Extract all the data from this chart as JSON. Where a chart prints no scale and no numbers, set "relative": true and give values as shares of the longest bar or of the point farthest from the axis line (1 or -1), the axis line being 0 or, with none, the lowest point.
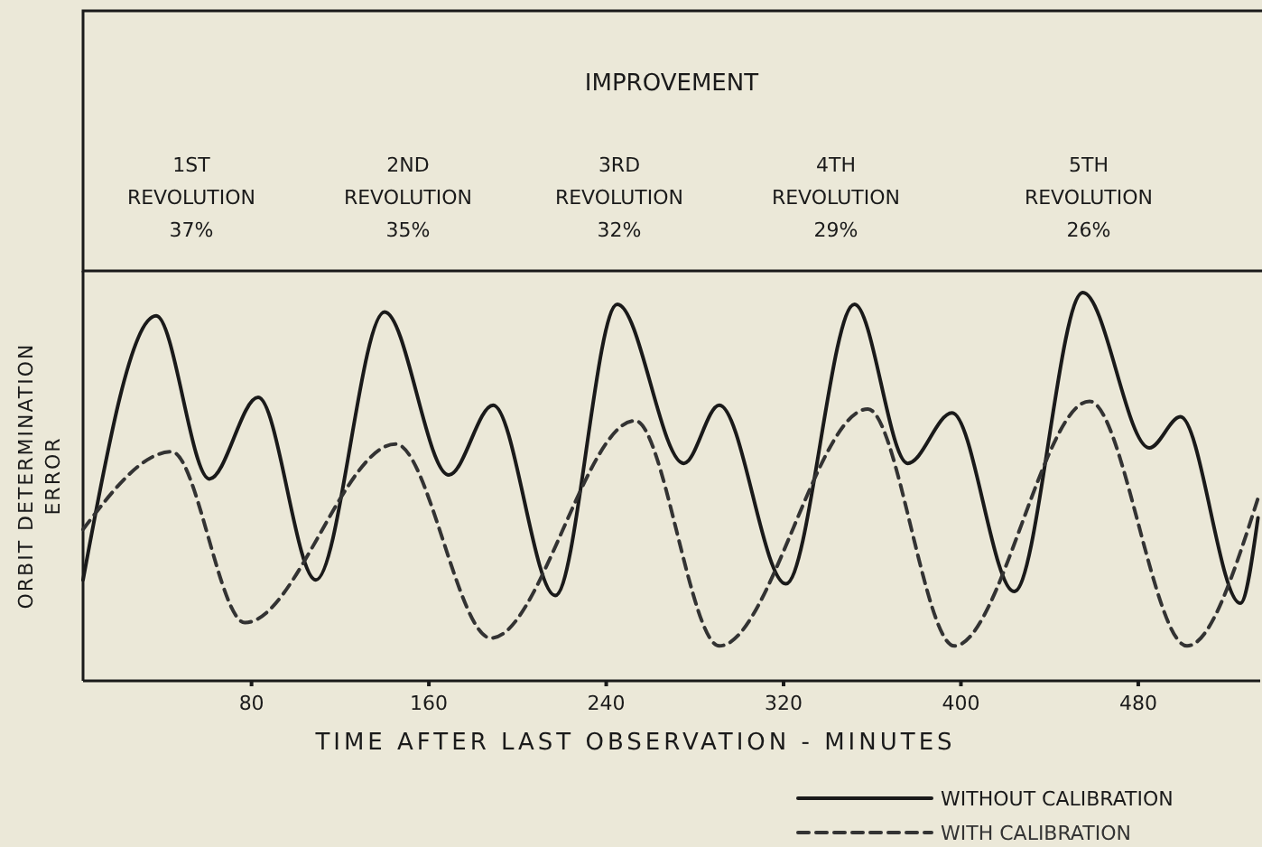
{
  "chart_data": {
    "type": "line",
    "title": "IMPROVEMENT",
    "annotations": [
      "1ST\nREVOLUTION\n37%",
      "2ND\nREVOLUTION\n35%",
      "3RD\nREVOLUTION\n32%",
      "4TH\nREVOLUTION\n29%",
      "5TH\nREVOLUTION\n26%"
    ],
    "xlabel": "TIME AFTER LAST OBSERVATION - MINUTES",
    "ylabel": "ORBIT DETERMINATION\nERROR",
    "relative": true,
    "xlim": [
      4,
      535
    ],
    "xticks": [
      80,
      160,
      240,
      320,
      400,
      480
    ],
    "grid": false,
    "legend": "bottom right",
    "series": [
      {
        "name": "WITHOUT CALIBRATION",
        "color": "#1a1a1a",
        "line_style": "solid",
        "x": [
          4,
          37,
          61,
          83,
          109,
          140,
          169,
          189,
          217,
          245,
          275,
          291,
          321,
          352,
          376,
          396,
          424,
          455,
          485,
          499,
          526,
          534
        ],
        "values": [
          0.26,
          0.94,
          0.52,
          0.73,
          0.26,
          0.95,
          0.53,
          0.71,
          0.22,
          0.97,
          0.56,
          0.71,
          0.25,
          0.97,
          0.56,
          0.69,
          0.23,
          1,
          0.6,
          0.68,
          0.2,
          0.42
        ]
      },
      {
        "name": "WITH CALIBRATION",
        "color": "#333333",
        "line_style": "dashed",
        "x": [
          4,
          44,
          77,
          145,
          188,
          253,
          291,
          358,
          397,
          458,
          502,
          534
        ],
        "values": [
          0.39,
          0.59,
          0.15,
          0.61,
          0.11,
          0.67,
          0.09,
          0.7,
          0.09,
          0.72,
          0.09,
          0.47
        ]
      }
    ]
  }
}
